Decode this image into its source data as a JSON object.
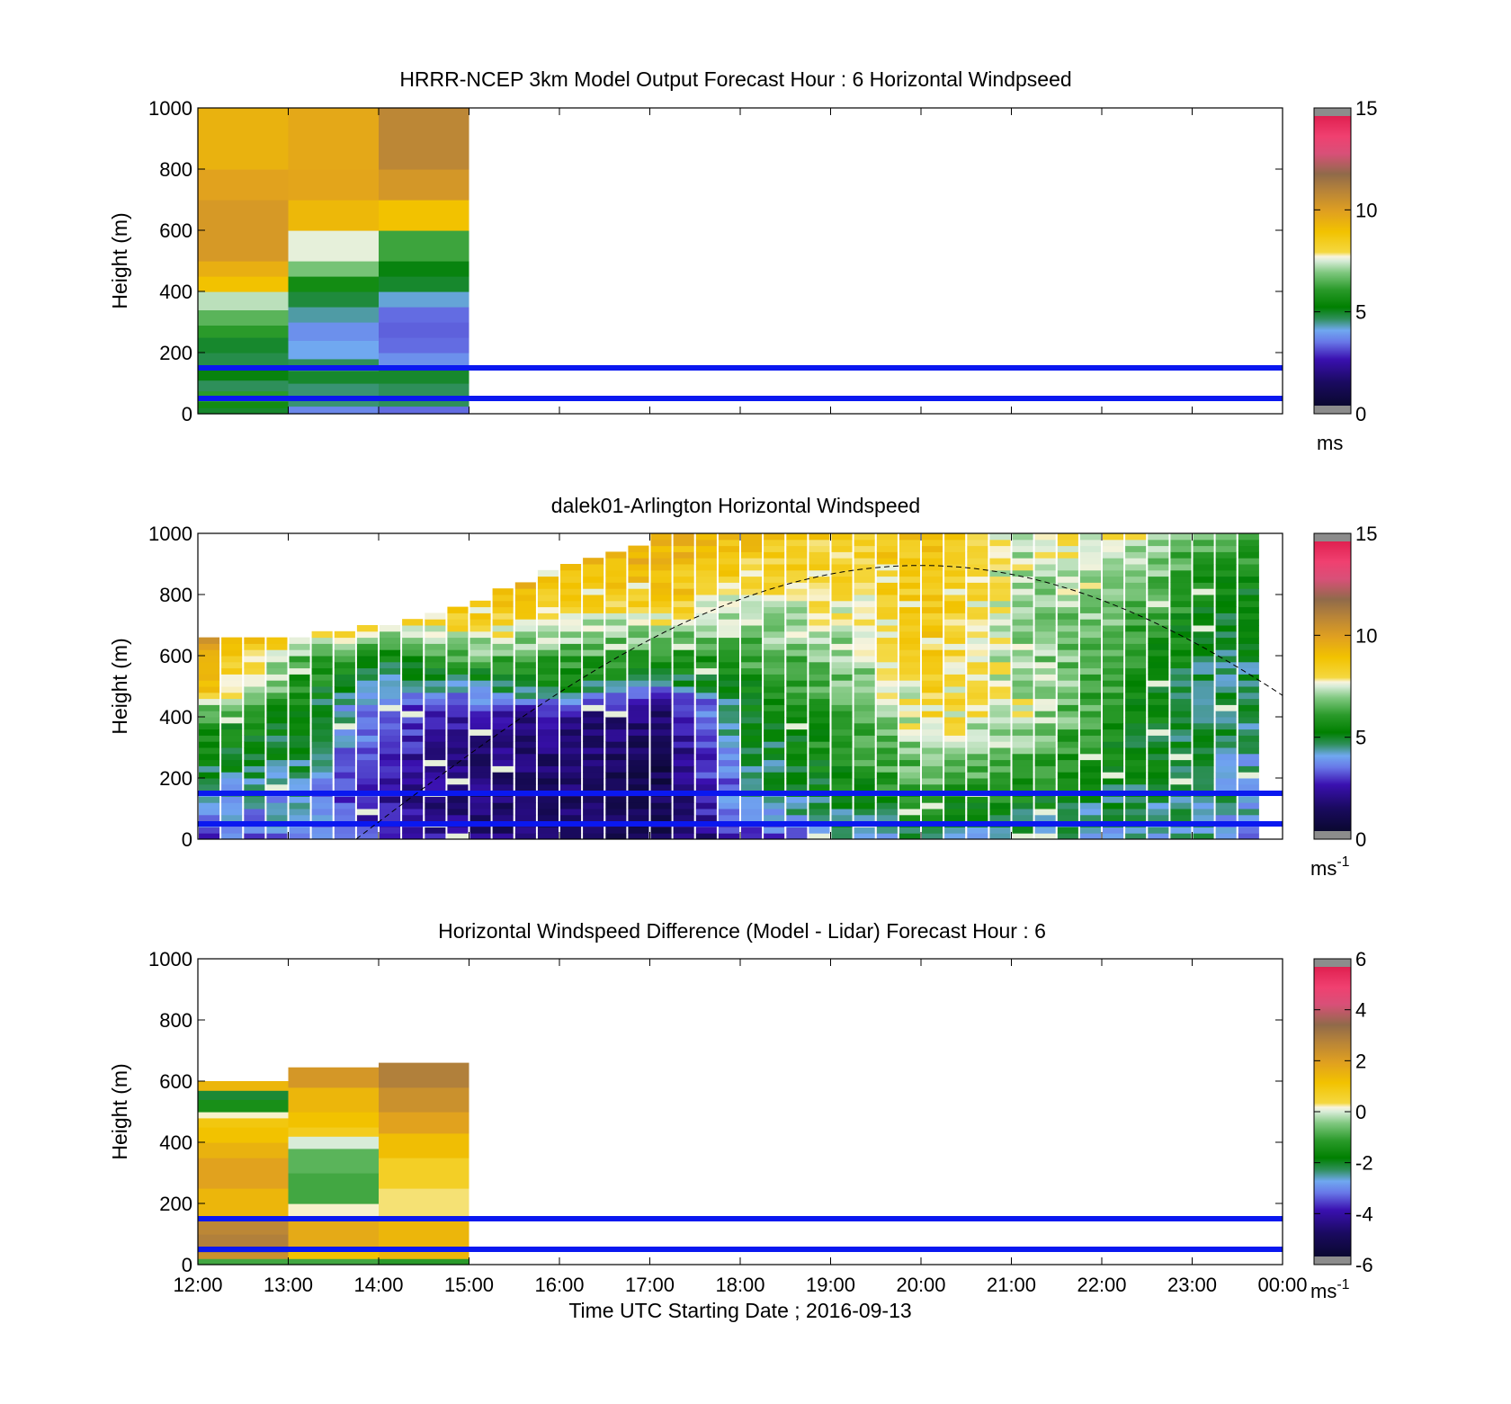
{
  "chart_data": [
    {
      "type": "heatmap",
      "title": "HRRR-NCEP 3km Model Output   Forecast Hour : 6 Horizontal Windpseed",
      "xlabel": "",
      "ylabel": "Height (m)",
      "xlim": [
        "12:00",
        "00:00"
      ],
      "ylim": [
        0,
        1000
      ],
      "yticks": [
        "0",
        "200",
        "400",
        "600",
        "800",
        "1000"
      ],
      "colorbar": {
        "min": 0,
        "max": 15,
        "ticks": [
          "0",
          "5",
          "10",
          "15"
        ],
        "unit": "ms",
        "unit_sup": ""
      },
      "reference_lines_m": [
        50,
        150
      ],
      "columns": [
        {
          "start": "12:00",
          "end": "13:00",
          "layers": [
            [
              0,
              20,
              4.8
            ],
            [
              20,
              40,
              5.5
            ],
            [
              40,
              75,
              6.0
            ],
            [
              75,
              110,
              4.5
            ],
            [
              110,
              150,
              5.0
            ],
            [
              150,
              200,
              4.6
            ],
            [
              200,
              250,
              4.8
            ],
            [
              250,
              290,
              6.0
            ],
            [
              290,
              340,
              6.5
            ],
            [
              340,
              400,
              7.3
            ],
            [
              400,
              450,
              9.0
            ],
            [
              450,
              500,
              9.6
            ],
            [
              500,
              700,
              10.3
            ],
            [
              700,
              800,
              10.0
            ],
            [
              800,
              1000,
              9.5
            ]
          ]
        },
        {
          "start": "13:00",
          "end": "14:00",
          "layers": [
            [
              0,
              25,
              3.5
            ],
            [
              25,
              100,
              4.4
            ],
            [
              100,
              140,
              4.8
            ],
            [
              140,
              180,
              4.5
            ],
            [
              180,
              240,
              3.9
            ],
            [
              240,
              300,
              3.6
            ],
            [
              300,
              350,
              4.2
            ],
            [
              350,
              400,
              4.7
            ],
            [
              400,
              450,
              5.5
            ],
            [
              450,
              500,
              6.8
            ],
            [
              500,
              600,
              7.6
            ],
            [
              600,
              700,
              9.3
            ],
            [
              700,
              800,
              9.9
            ],
            [
              800,
              1000,
              9.8
            ]
          ]
        },
        {
          "start": "14:00",
          "end": "15:00",
          "layers": [
            [
              0,
              25,
              3.2
            ],
            [
              25,
              100,
              4.5
            ],
            [
              100,
              150,
              4.8
            ],
            [
              150,
              200,
              3.6
            ],
            [
              200,
              250,
              3.2
            ],
            [
              250,
              300,
              3.1
            ],
            [
              300,
              350,
              3.2
            ],
            [
              350,
              400,
              4.0
            ],
            [
              400,
              450,
              4.8
            ],
            [
              450,
              500,
              5.0
            ],
            [
              500,
              600,
              6.2
            ],
            [
              600,
              700,
              9.0
            ],
            [
              700,
              800,
              10.4
            ],
            [
              800,
              1000,
              11.0
            ]
          ]
        }
      ]
    },
    {
      "type": "heatmap",
      "title": "dalek01-Arlington  Horizontal Windspeed",
      "xlabel": "",
      "ylabel": "Height (m)",
      "xlim": [
        "12:00",
        "00:00"
      ],
      "ylim": [
        0,
        1000
      ],
      "yticks": [
        "0",
        "200",
        "400",
        "600",
        "800",
        "1000"
      ],
      "colorbar": {
        "min": 0,
        "max": 15,
        "ticks": [
          "0",
          "5",
          "10",
          "15"
        ],
        "unit": "ms",
        "unit_sup": "-1"
      },
      "reference_lines_m": [
        50,
        150
      ],
      "curve": {
        "style": "dashed",
        "start": "13:45",
        "peak_time": "20:00",
        "peak_height_m": 895,
        "end": "00:00",
        "end_height_m": 470
      },
      "columns_summary": "time-height windspeed field, 15-minute columns 12:00-23:45; low speeds (1-3 ms-1) below ~450 m between 13:45 and 18:15, moderate 4-7 ms-1 above, 8-11 ms-1 near the top after 15:00",
      "profiles": [
        {
          "time": "12:00",
          "top_m": 660,
          "points": [
            [
              0,
              3.0
            ],
            [
              100,
              3.5
            ],
            [
              200,
              4.5
            ],
            [
              400,
              6.0
            ],
            [
              500,
              9.0
            ],
            [
              650,
              10.0
            ]
          ]
        },
        {
          "time": "13:00",
          "top_m": 660,
          "points": [
            [
              0,
              3.5
            ],
            [
              150,
              4.0
            ],
            [
              400,
              5.0
            ],
            [
              600,
              6.5
            ],
            [
              660,
              8.5
            ]
          ]
        },
        {
          "time": "14:00",
          "top_m": 700,
          "points": [
            [
              0,
              2.5
            ],
            [
              100,
              2.0
            ],
            [
              300,
              2.5
            ],
            [
              450,
              3.0
            ],
            [
              600,
              5.5
            ],
            [
              700,
              8.0
            ]
          ]
        },
        {
          "time": "15:00",
          "top_m": 780,
          "points": [
            [
              0,
              1.5
            ],
            [
              200,
              1.5
            ],
            [
              400,
              2.0
            ],
            [
              500,
              4.5
            ],
            [
              600,
              6.5
            ],
            [
              780,
              9.5
            ]
          ]
        },
        {
          "time": "16:00",
          "top_m": 900,
          "points": [
            [
              0,
              1.2
            ],
            [
              200,
              1.2
            ],
            [
              400,
              1.8
            ],
            [
              500,
              5.0
            ],
            [
              650,
              7.0
            ],
            [
              900,
              9.5
            ]
          ]
        },
        {
          "time": "17:00",
          "top_m": 990,
          "points": [
            [
              0,
              1.0
            ],
            [
              200,
              0.8
            ],
            [
              450,
              1.5
            ],
            [
              520,
              4.5
            ],
            [
              650,
              6.5
            ],
            [
              800,
              9.0
            ],
            [
              990,
              9.5
            ]
          ]
        },
        {
          "time": "18:00",
          "top_m": 990,
          "points": [
            [
              0,
              2.5
            ],
            [
              100,
              4.0
            ],
            [
              300,
              4.5
            ],
            [
              500,
              5.5
            ],
            [
              700,
              7.0
            ],
            [
              990,
              9.0
            ]
          ]
        },
        {
          "time": "19:00",
          "top_m": 1000,
          "points": [
            [
              0,
              4.0
            ],
            [
              200,
              5.5
            ],
            [
              500,
              6.5
            ],
            [
              700,
              7.5
            ],
            [
              1000,
              8.5
            ]
          ]
        },
        {
          "time": "20:00",
          "top_m": 1000,
          "points": [
            [
              0,
              4.5
            ],
            [
              200,
              6.5
            ],
            [
              400,
              8.0
            ],
            [
              600,
              8.5
            ],
            [
              1000,
              9.0
            ]
          ]
        },
        {
          "time": "21:00",
          "top_m": 1000,
          "points": [
            [
              0,
              4.0
            ],
            [
              200,
              6.0
            ],
            [
              400,
              7.5
            ],
            [
              700,
              7.0
            ],
            [
              1000,
              7.5
            ]
          ]
        },
        {
          "time": "22:00",
          "top_m": 1000,
          "points": [
            [
              0,
              4.0
            ],
            [
              200,
              5.0
            ],
            [
              500,
              6.0
            ],
            [
              800,
              7.0
            ],
            [
              1000,
              8.0
            ]
          ]
        },
        {
          "time": "23:00",
          "top_m": 1000,
          "points": [
            [
              0,
              4.0
            ],
            [
              200,
              4.5
            ],
            [
              500,
              4.5
            ],
            [
              800,
              5.5
            ],
            [
              1000,
              6.5
            ]
          ]
        },
        {
          "time": "23:45",
          "top_m": 1000,
          "points": [
            [
              0,
              3.5
            ],
            [
              200,
              4.0
            ],
            [
              500,
              4.5
            ],
            [
              800,
              5.0
            ],
            [
              1000,
              6.0
            ]
          ]
        }
      ]
    },
    {
      "type": "heatmap",
      "title": "Horizontal Windspeed Difference (Model - Lidar) Forecast Hour : 6",
      "xlabel": "Time UTC  Starting Date ; 2016-09-13",
      "ylabel": "Height (m)",
      "xlim": [
        "12:00",
        "00:00"
      ],
      "xticks": [
        "12:00",
        "13:00",
        "14:00",
        "15:00",
        "16:00",
        "17:00",
        "18:00",
        "19:00",
        "20:00",
        "21:00",
        "22:00",
        "23:00",
        "00:00"
      ],
      "ylim": [
        0,
        1000
      ],
      "yticks": [
        "0",
        "200",
        "400",
        "600",
        "800",
        "1000"
      ],
      "colorbar": {
        "min": -6,
        "max": 6,
        "ticks": [
          "-6",
          "-4",
          "-2",
          "0",
          "2",
          "4",
          "6"
        ],
        "unit": "ms",
        "unit_sup": "-1"
      },
      "reference_lines_m": [
        50,
        150
      ],
      "columns": [
        {
          "start": "12:00",
          "end": "13:00",
          "top_m": 600,
          "layers": [
            [
              0,
              20,
              -1.0
            ],
            [
              20,
              40,
              2.5
            ],
            [
              40,
              100,
              3.0
            ],
            [
              100,
              150,
              2.8
            ],
            [
              150,
              250,
              1.5
            ],
            [
              250,
              350,
              2.0
            ],
            [
              350,
              400,
              1.6
            ],
            [
              400,
              450,
              1.2
            ],
            [
              450,
              480,
              1.0
            ],
            [
              480,
              500,
              0.2
            ],
            [
              500,
              540,
              -1.5
            ],
            [
              540,
              570,
              -2.2
            ],
            [
              570,
              600,
              1.5
            ]
          ]
        },
        {
          "start": "13:00",
          "end": "14:00",
          "top_m": 645,
          "layers": [
            [
              0,
              20,
              -1.0
            ],
            [
              20,
              60,
              1.2
            ],
            [
              60,
              150,
              1.8
            ],
            [
              150,
              200,
              0.2
            ],
            [
              200,
              300,
              -1.0
            ],
            [
              300,
              380,
              -0.8
            ],
            [
              380,
              420,
              0.0
            ],
            [
              420,
              450,
              0.8
            ],
            [
              450,
              500,
              1.2
            ],
            [
              500,
              580,
              1.5
            ],
            [
              580,
              645,
              2.3
            ]
          ]
        },
        {
          "start": "14:00",
          "end": "15:00",
          "top_m": 660,
          "layers": [
            [
              0,
              20,
              -1.2
            ],
            [
              20,
              150,
              1.5
            ],
            [
              150,
              250,
              0.3
            ],
            [
              250,
              350,
              0.7
            ],
            [
              350,
              430,
              1.3
            ],
            [
              430,
              500,
              2.0
            ],
            [
              500,
              580,
              2.5
            ],
            [
              580,
              660,
              3.0
            ]
          ]
        }
      ]
    }
  ]
}
